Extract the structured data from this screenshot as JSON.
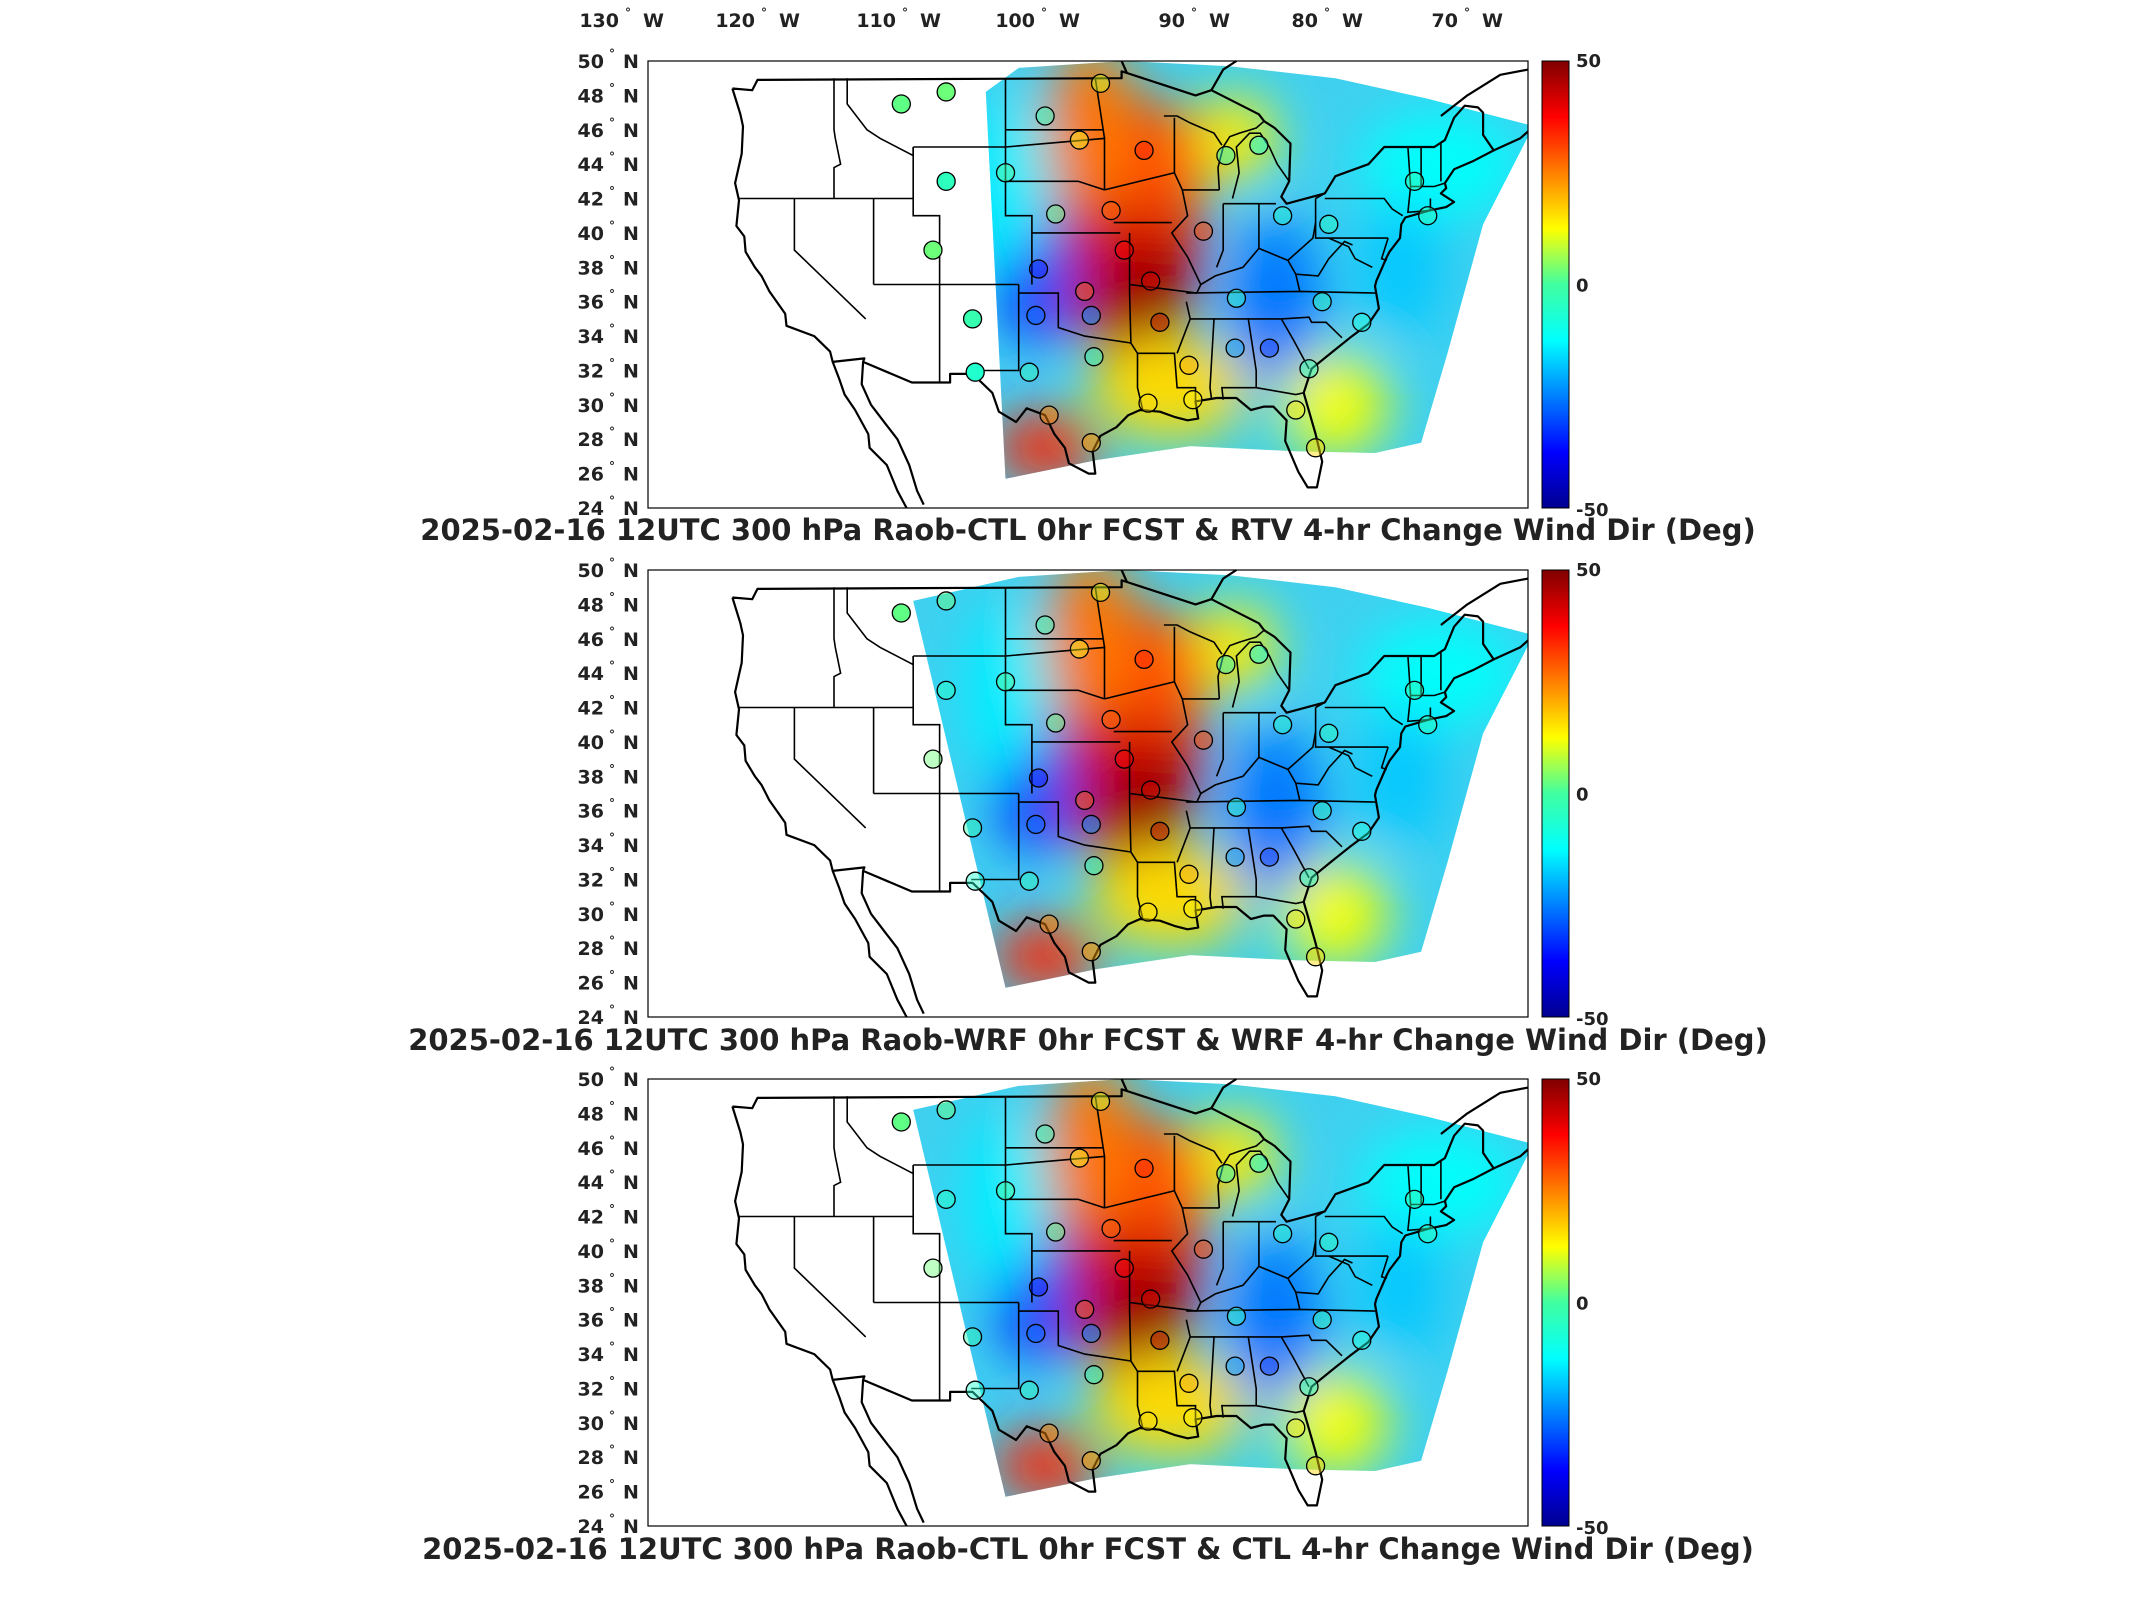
{
  "top_axis": {
    "lon_labels": [
      "130",
      "120",
      "110",
      "100",
      "90",
      "80",
      "70"
    ],
    "lon_suffix": "W",
    "lon_values": [
      130,
      120,
      110,
      100,
      90,
      80,
      70
    ]
  },
  "lat_axis": {
    "labels": [
      "50",
      "48",
      "46",
      "44",
      "42",
      "40",
      "38",
      "36",
      "34",
      "32",
      "30",
      "28",
      "26",
      "24"
    ],
    "values": [
      50,
      48,
      46,
      44,
      42,
      40,
      38,
      36,
      34,
      32,
      30,
      28,
      26,
      24
    ],
    "suffix": "N",
    "degree_mark": "°"
  },
  "colorbar": {
    "max_label": "50",
    "mid_label": "0",
    "min_label": "-50",
    "range": [
      -50,
      50
    ],
    "colors": [
      "#00008f",
      "#0020ff",
      "#00bfff",
      "#40ffbf",
      "#ffff00",
      "#ff8000",
      "#ff2000",
      "#800000"
    ]
  },
  "panels": [
    {
      "title": "2025-02-16 12UTC 300 hPa Raob-CTL 0hr FCST & RTV 4-hr Change Wind Dir (Deg)",
      "domain_west_lon": -105.5
    },
    {
      "title": "2025-02-16 12UTC 300 hPa Raob-WRF 0hr FCST & WRF 4-hr Change Wind Dir (Deg)",
      "domain_west_lon": -111
    },
    {
      "title": "2025-02-16 12UTC 300 hPa Raob-CTL 0hr FCST & CTL 4-hr Change Wind Dir (Deg)",
      "domain_west_lon": -111
    }
  ],
  "stations": [
    {
      "lon": -111.9,
      "lat": 47.5,
      "value": 2
    },
    {
      "lon": -108.5,
      "lat": 48.2,
      "value": 3
    },
    {
      "lon": -101.0,
      "lat": 46.8,
      "value": -2
    },
    {
      "lon": -96.8,
      "lat": 48.7,
      "value": 10
    },
    {
      "lon": -98.4,
      "lat": 45.4,
      "value": 14
    },
    {
      "lon": -93.5,
      "lat": 44.8,
      "value": 35
    },
    {
      "lon": -87.3,
      "lat": 44.5,
      "value": -5
    },
    {
      "lon": -84.8,
      "lat": 45.1,
      "value": -8
    },
    {
      "lon": -108.5,
      "lat": 43.0,
      "value": -4
    },
    {
      "lon": -104.0,
      "lat": 43.5,
      "value": 0
    },
    {
      "lon": -100.2,
      "lat": 41.1,
      "value": 3
    },
    {
      "lon": -96.0,
      "lat": 41.3,
      "value": 28
    },
    {
      "lon": -89.0,
      "lat": 40.1,
      "value": 30
    },
    {
      "lon": -83.0,
      "lat": 41.0,
      "value": -6
    },
    {
      "lon": -79.5,
      "lat": 40.5,
      "value": -4
    },
    {
      "lon": -73.0,
      "lat": 43.0,
      "value": -2
    },
    {
      "lon": -72.0,
      "lat": 41.0,
      "value": -3
    },
    {
      "lon": -109.5,
      "lat": 39.0,
      "value": 3
    },
    {
      "lon": -101.5,
      "lat": 37.9,
      "value": -36
    },
    {
      "lon": -95.0,
      "lat": 39.0,
      "value": 38
    },
    {
      "lon": -93.0,
      "lat": 37.2,
      "value": 42
    },
    {
      "lon": -86.5,
      "lat": 36.2,
      "value": -6
    },
    {
      "lon": -80.0,
      "lat": 36.0,
      "value": -3
    },
    {
      "lon": -77.0,
      "lat": 34.8,
      "value": -8
    },
    {
      "lon": -106.5,
      "lat": 35.0,
      "value": -2
    },
    {
      "lon": -101.7,
      "lat": 35.2,
      "value": -28
    },
    {
      "lon": -98.0,
      "lat": 36.6,
      "value": 28
    },
    {
      "lon": -97.5,
      "lat": 35.2,
      "value": -24
    },
    {
      "lon": -92.3,
      "lat": 34.8,
      "value": 45
    },
    {
      "lon": -97.3,
      "lat": 32.8,
      "value": -5
    },
    {
      "lon": -106.3,
      "lat": 31.9,
      "value": -6
    },
    {
      "lon": -102.2,
      "lat": 31.9,
      "value": -4
    },
    {
      "lon": -90.1,
      "lat": 32.3,
      "value": 20
    },
    {
      "lon": -86.6,
      "lat": 33.3,
      "value": -22
    },
    {
      "lon": -84.0,
      "lat": 33.3,
      "value": -32
    },
    {
      "lon": -81.0,
      "lat": 32.1,
      "value": -4
    },
    {
      "lon": -82.0,
      "lat": 29.7,
      "value": 14
    },
    {
      "lon": -80.5,
      "lat": 27.5,
      "value": 16
    },
    {
      "lon": -97.5,
      "lat": 27.8,
      "value": 22
    },
    {
      "lon": -100.7,
      "lat": 29.4,
      "value": 24
    },
    {
      "lon": -93.2,
      "lat": 30.1,
      "value": 16
    },
    {
      "lon": -89.8,
      "lat": 30.3,
      "value": 14
    }
  ]
}
